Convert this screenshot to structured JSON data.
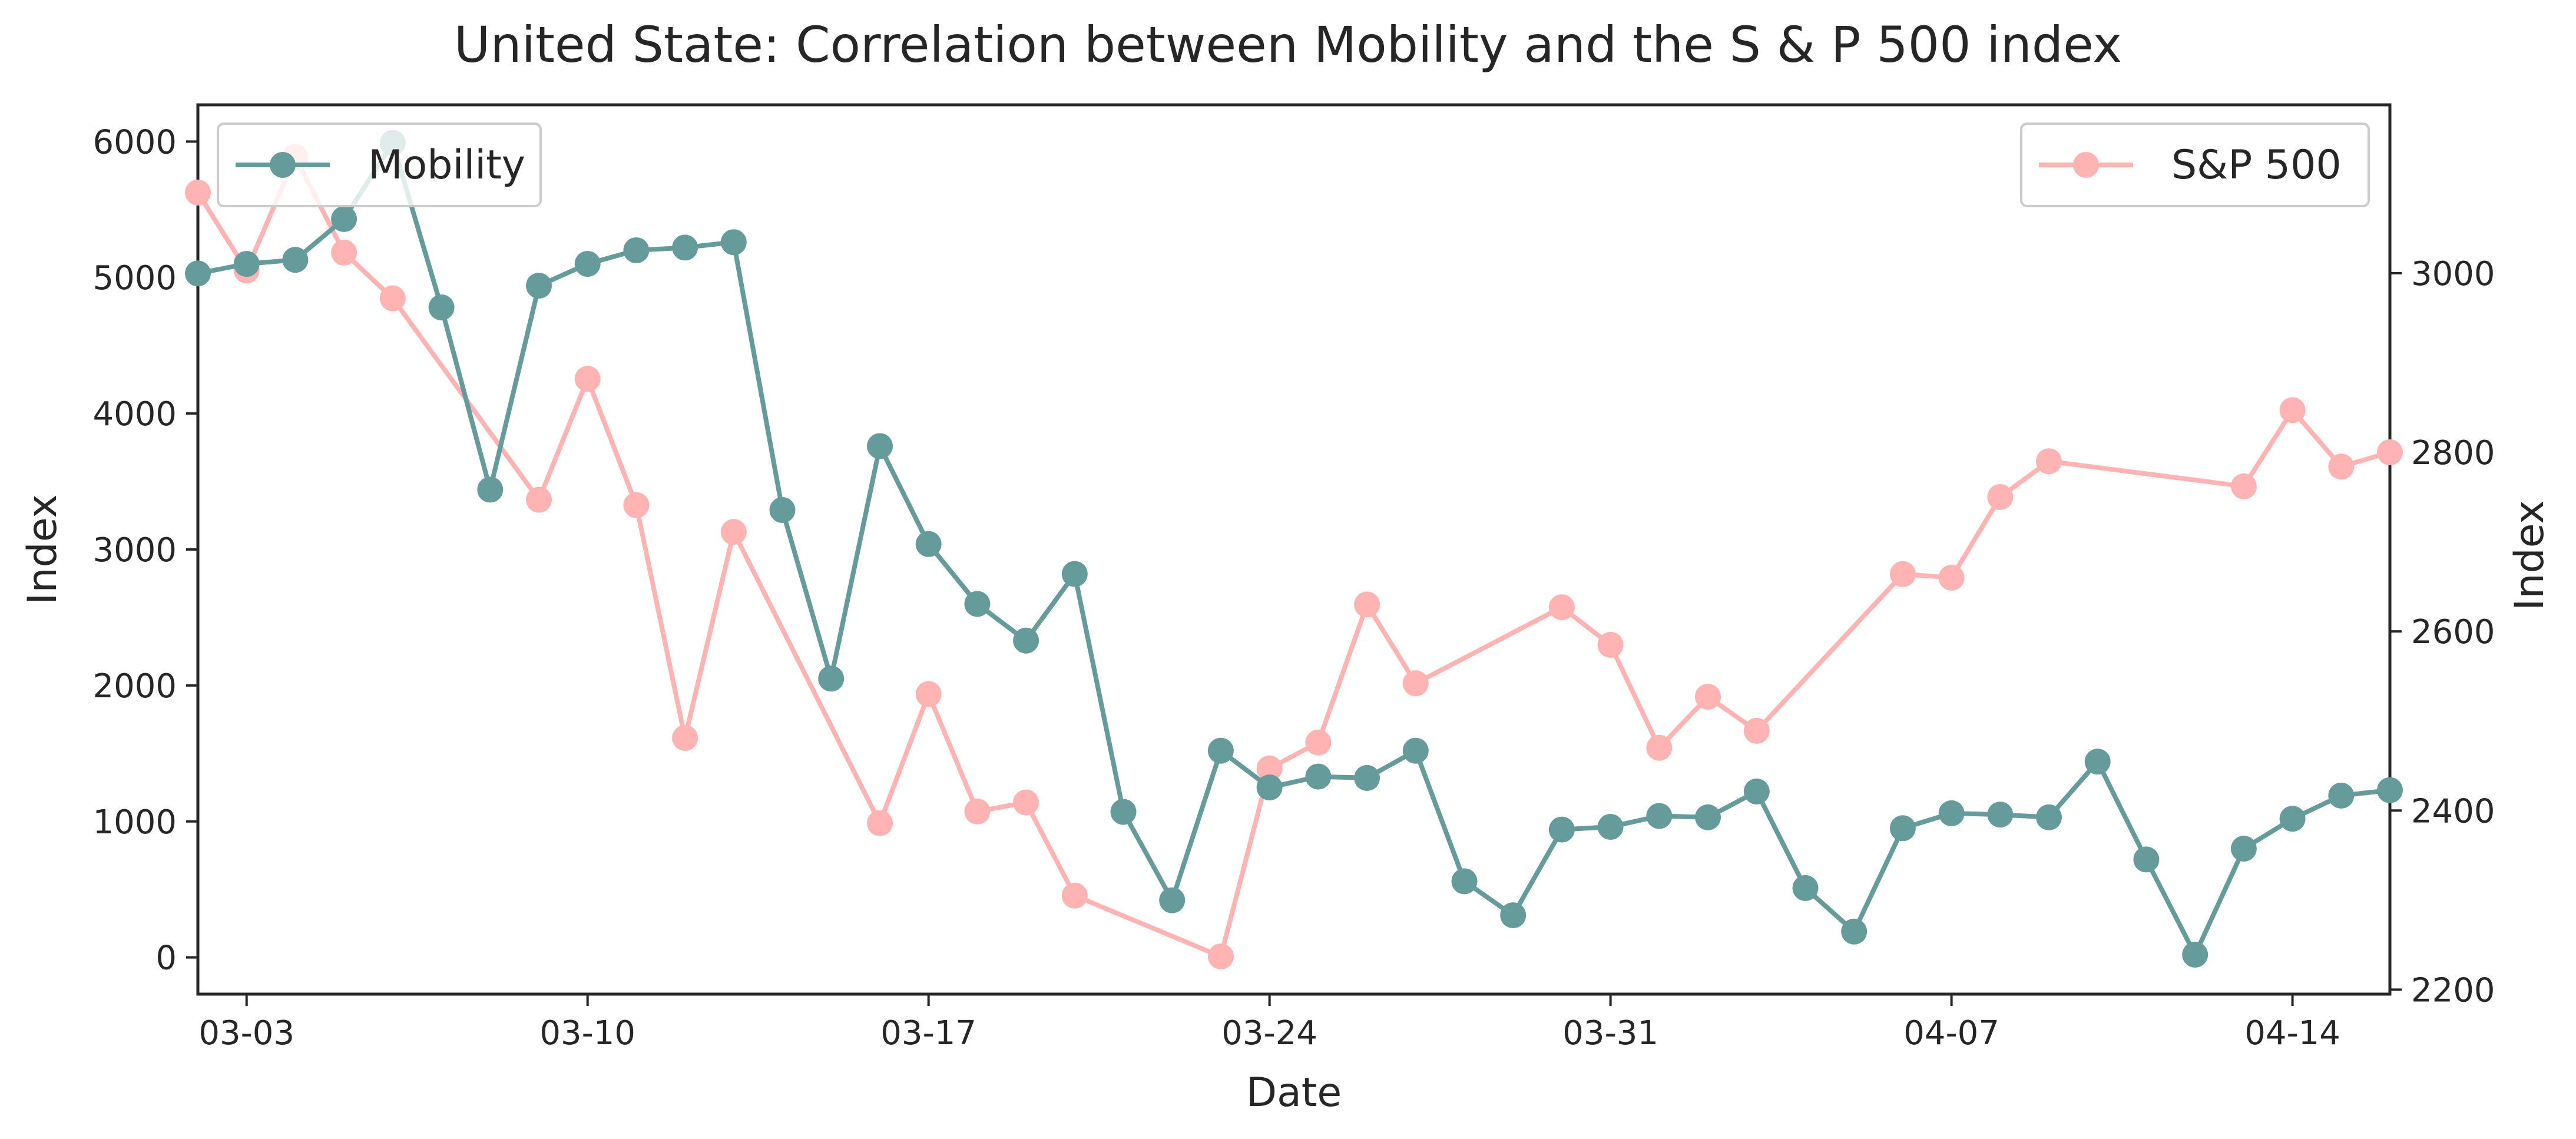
{
  "chart_data": {
    "type": "line",
    "title": "United State: Correlation between Mobility and the S & P 500 index",
    "xlabel": "Date",
    "ylabel_left": "Index",
    "ylabel_right": "Index",
    "x_tick_labels": [
      "03-03",
      "03-10",
      "03-17",
      "03-24",
      "03-31",
      "04-07",
      "04-14"
    ],
    "x_tick_days": [
      3,
      10,
      17,
      24,
      31,
      38,
      45
    ],
    "xlim_days": [
      2,
      47
    ],
    "y_left": {
      "ylim": [
        -270,
        6270
      ],
      "ticks": [
        0,
        1000,
        2000,
        3000,
        4000,
        5000,
        6000
      ]
    },
    "y_right": {
      "ylim": [
        2195,
        3188
      ],
      "ticks": [
        2200,
        2400,
        2600,
        2800,
        3000
      ]
    },
    "grid": false,
    "series": [
      {
        "name": "Mobility",
        "axis": "left",
        "color": "#659b9b",
        "legend_position": "top-left",
        "x_days": [
          2,
          3,
          4,
          5,
          6,
          7,
          8,
          9,
          10,
          11,
          12,
          13,
          14,
          15,
          16,
          17,
          18,
          19,
          20,
          21,
          22,
          23,
          24,
          25,
          26,
          27,
          28,
          29,
          30,
          31,
          32,
          33,
          34,
          35,
          36,
          37,
          38,
          39,
          40,
          41,
          42,
          43,
          44,
          45,
          46,
          47
        ],
        "values": [
          5030,
          5100,
          5130,
          5430,
          5990,
          4780,
          3440,
          4940,
          5100,
          5200,
          5220,
          5260,
          3290,
          2050,
          3760,
          3040,
          2600,
          2330,
          2820,
          1070,
          420,
          1520,
          1250,
          1330,
          1320,
          1520,
          560,
          310,
          940,
          960,
          1040,
          1030,
          1220,
          510,
          190,
          950,
          1060,
          1050,
          1030,
          1440,
          720,
          20,
          800,
          1020,
          1190,
          1230
        ]
      },
      {
        "name": "S&P 500",
        "axis": "right",
        "color": "#ffb3b3",
        "legend_position": "top-right",
        "x_days": [
          2,
          3,
          4,
          5,
          6,
          9,
          10,
          11,
          12,
          13,
          16,
          17,
          18,
          19,
          20,
          23,
          24,
          25,
          26,
          27,
          30,
          31,
          32,
          33,
          34,
          37,
          38,
          39,
          40,
          44,
          45,
          46,
          47
        ],
        "values": [
          3090,
          3003,
          3130,
          3023,
          2972,
          2747,
          2882,
          2741,
          2481,
          2711,
          2386,
          2530,
          2399,
          2409,
          2305,
          2237,
          2447,
          2476,
          2630,
          2542,
          2627,
          2585,
          2470,
          2527,
          2489,
          2664,
          2660,
          2750,
          2790,
          2762,
          2847,
          2784,
          2800
        ]
      }
    ]
  }
}
